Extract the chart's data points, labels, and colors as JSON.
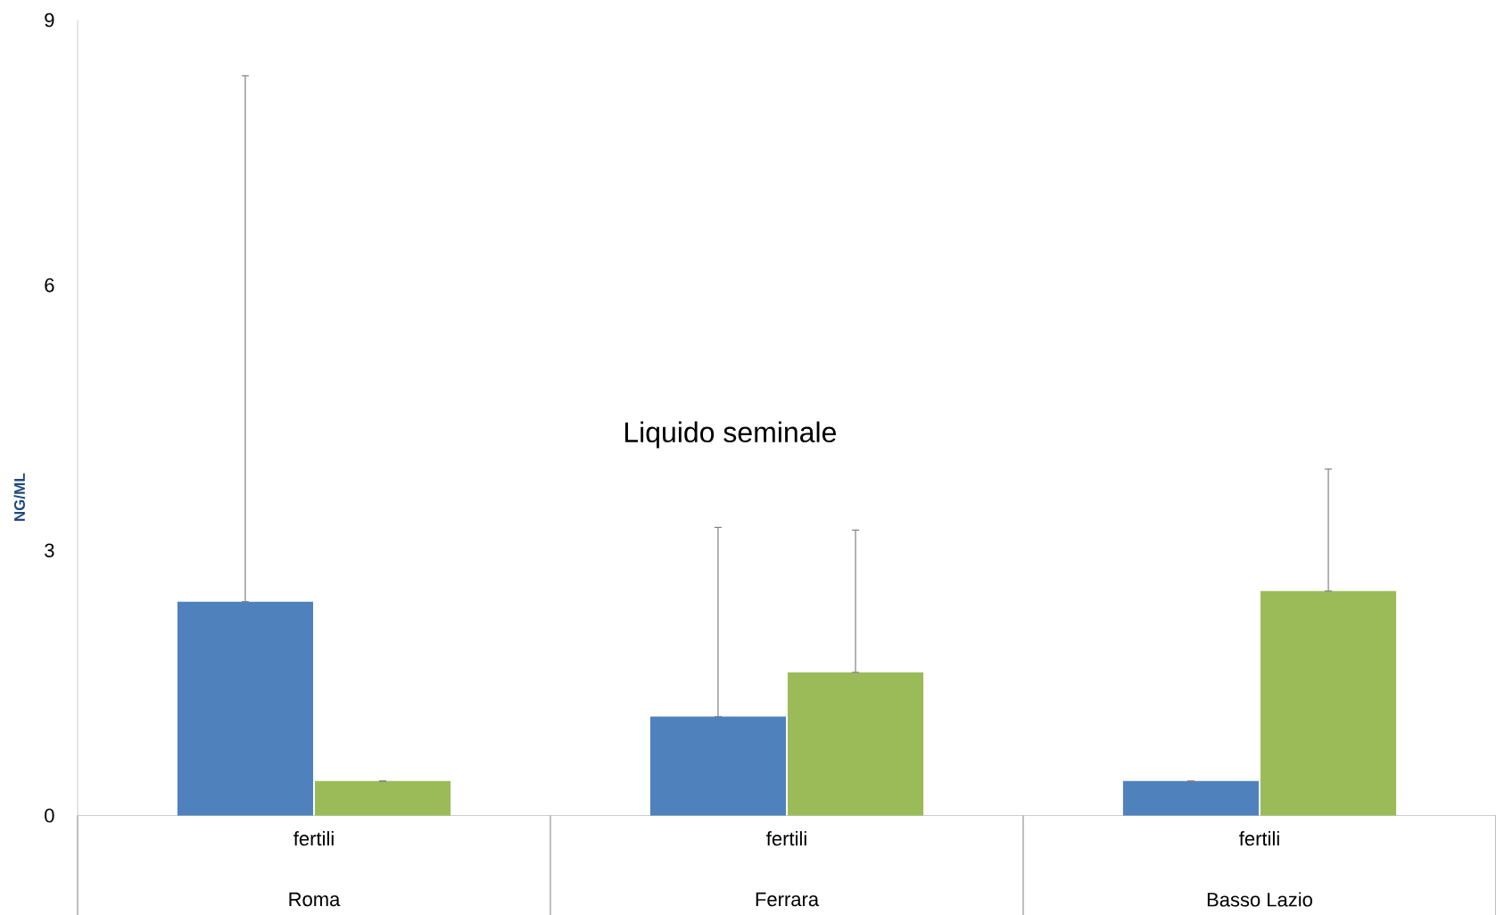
{
  "chart_data": {
    "type": "bar",
    "title": "Liquido seminale",
    "ylabel": "NG/ML",
    "categories": [
      "fertili",
      "fertili",
      "fertili"
    ],
    "annotations": [
      "Roma",
      "Ferrara",
      "Basso Lazio"
    ],
    "series": [
      {
        "color": "#4f81bd",
        "values": [
          2.42,
          1.12,
          0.39
        ],
        "errors": [
          [
            2.42,
            8.37
          ],
          [
            1.12,
            3.26
          ],
          [
            0.39,
            0.39
          ]
        ]
      },
      {
        "color": "#9bbb59",
        "values": [
          0.39,
          1.62,
          2.54
        ],
        "errors": [
          [
            0.39,
            0.39
          ],
          [
            1.62,
            3.23
          ],
          [
            2.54,
            3.92
          ]
        ]
      }
    ],
    "ylim": [
      0,
      9
    ],
    "yticks": [
      0,
      3,
      6,
      9
    ]
  }
}
